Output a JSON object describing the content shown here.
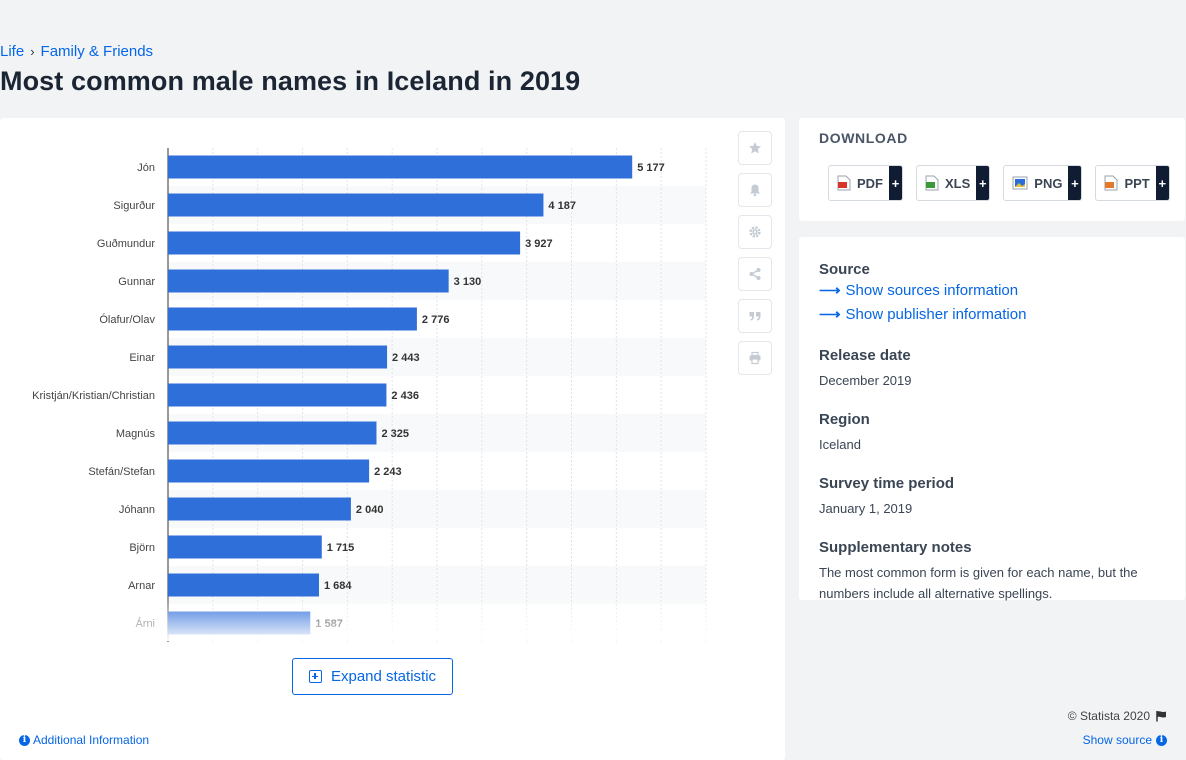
{
  "breadcrumb": {
    "items": [
      "Life",
      "Family & Friends"
    ],
    "separator": "›"
  },
  "page_title": "Most common male names in Iceland in 2019",
  "chart_data": {
    "type": "bar",
    "orientation": "horizontal",
    "categories": [
      "Jón",
      "Sigurður",
      "Guðmundur",
      "Gunnar",
      "Ólafur/Olav",
      "Einar",
      "Kristján/Kristian/Christian",
      "Magnús",
      "Stefán/Stefan",
      "Jóhann",
      "Björn",
      "Arnar",
      "Árni"
    ],
    "values": [
      5177,
      4187,
      3927,
      3130,
      2776,
      2443,
      2436,
      2325,
      2243,
      2040,
      1715,
      1684,
      1587
    ],
    "value_labels": [
      "5 177",
      "4 187",
      "3 927",
      "3 130",
      "2 776",
      "2 443",
      "2 436",
      "2 325",
      "2 243",
      "2 040",
      "1 715",
      "1 684",
      "1 587"
    ],
    "xlim": [
      0,
      6000
    ],
    "bar_color": "#2f6fda",
    "grid": true
  },
  "tools": [
    "favorite-star",
    "notification-bell",
    "settings-gear",
    "share",
    "quote",
    "print"
  ],
  "expand_button": "Expand statistic",
  "copyright": "© Statista 2020",
  "additional_info": "Additional Information",
  "show_source": "Show source",
  "download": {
    "title": "DOWNLOAD",
    "buttons": [
      {
        "label": "PDF",
        "plus": "+",
        "icon": "pdf-file-icon",
        "color": "#d9342b"
      },
      {
        "label": "XLS",
        "plus": "+",
        "icon": "xls-file-icon",
        "color": "#3a9a3a"
      },
      {
        "label": "PNG",
        "plus": "+",
        "icon": "png-file-icon",
        "color": "#2b6cd9"
      },
      {
        "label": "PPT",
        "plus": "+",
        "icon": "ppt-file-icon",
        "color": "#e3792b"
      }
    ]
  },
  "meta": {
    "source_label": "Source",
    "show_sources": "Show sources information",
    "show_publisher": "Show publisher information",
    "release_date_label": "Release date",
    "release_date": "December 2019",
    "region_label": "Region",
    "region": "Iceland",
    "survey_label": "Survey time period",
    "survey": "January 1, 2019",
    "notes_label": "Supplementary notes",
    "notes": "The most common form is given for each name, but the numbers include all alternative spellings."
  }
}
